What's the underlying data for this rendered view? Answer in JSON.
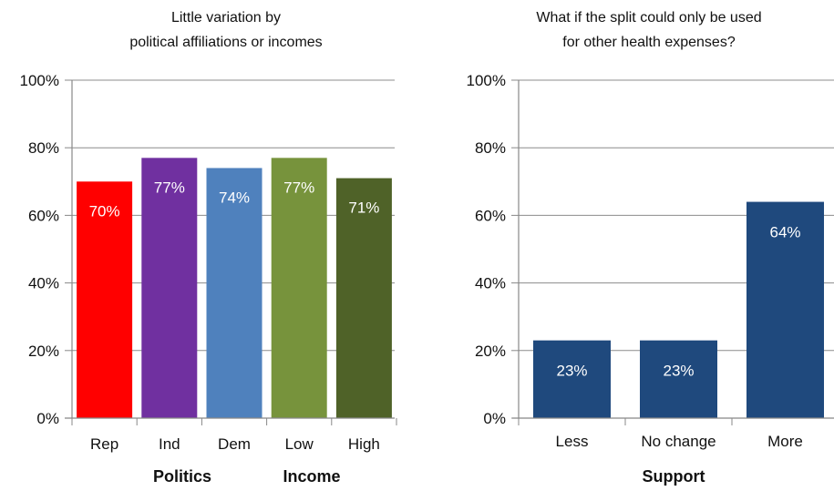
{
  "chart_data": [
    {
      "type": "bar",
      "title_lines": [
        "Little variation by",
        "political affiliations or incomes"
      ],
      "categories": [
        "Rep",
        "Ind",
        "Dem",
        "Low",
        "High"
      ],
      "values": [
        70,
        77,
        74,
        77,
        71
      ],
      "value_labels": [
        "70%",
        "77%",
        "74%",
        "77%",
        "71%"
      ],
      "colors": [
        "#ff0000",
        "#7030a0",
        "#4f81bd",
        "#77933c",
        "#4f6228"
      ],
      "group_labels": [
        "Politics",
        "Income"
      ],
      "ylim": [
        0,
        100
      ],
      "yticks": [
        "0%",
        "20%",
        "40%",
        "60%",
        "80%",
        "100%"
      ],
      "grid": true
    },
    {
      "type": "bar",
      "title_lines": [
        "What if the split could only be used",
        "for other health expenses?"
      ],
      "categories": [
        "Less",
        "No change",
        "More"
      ],
      "values": [
        23,
        23,
        64
      ],
      "value_labels": [
        "23%",
        "23%",
        "64%"
      ],
      "colors": [
        "#1f497d",
        "#1f497d",
        "#1f497d"
      ],
      "xlabel": "Support",
      "ylim": [
        0,
        100
      ],
      "yticks": [
        "0%",
        "20%",
        "40%",
        "60%",
        "80%",
        "100%"
      ],
      "grid": true
    }
  ]
}
